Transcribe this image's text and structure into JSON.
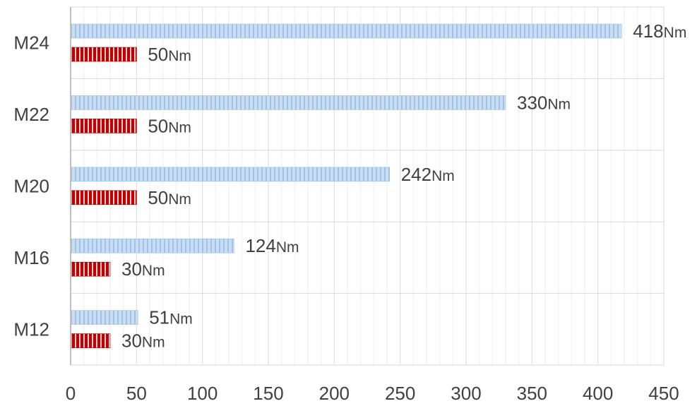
{
  "chart_data": {
    "type": "bar",
    "orientation": "horizontal",
    "categories": [
      "M24",
      "M22",
      "M20",
      "M16",
      "M12"
    ],
    "series": [
      {
        "values": [
          418,
          330,
          242,
          124,
          51
        ],
        "labels": [
          {
            "num": "418",
            "unit": "Nm"
          },
          {
            "num": "330",
            "unit": "Nm"
          },
          {
            "num": "242",
            "unit": "Nm"
          },
          {
            "num": "124",
            "unit": "Nm"
          },
          {
            "num": "51",
            "unit": "Nm"
          }
        ],
        "color": "#bdd7ee",
        "stripe_color": "#9dc3e6",
        "pattern": "vertical-stripes"
      },
      {
        "values": [
          50,
          50,
          50,
          30,
          30
        ],
        "labels": [
          {
            "num": "50",
            "unit": "Nm"
          },
          {
            "num": "50",
            "unit": "Nm"
          },
          {
            "num": "50",
            "unit": "Nm"
          },
          {
            "num": "30",
            "unit": "Nm"
          },
          {
            "num": "30",
            "unit": "Nm"
          }
        ],
        "color": "#c00000",
        "stripe_color": "#ffffff",
        "pattern": "vertical-stripes"
      }
    ],
    "xticks": [
      "0",
      "50",
      "100",
      "150",
      "200",
      "250",
      "300",
      "350",
      "400",
      "450"
    ],
    "xlim": [
      0,
      450
    ],
    "grid": true,
    "minor_grid_step": 10,
    "legend": "none"
  }
}
